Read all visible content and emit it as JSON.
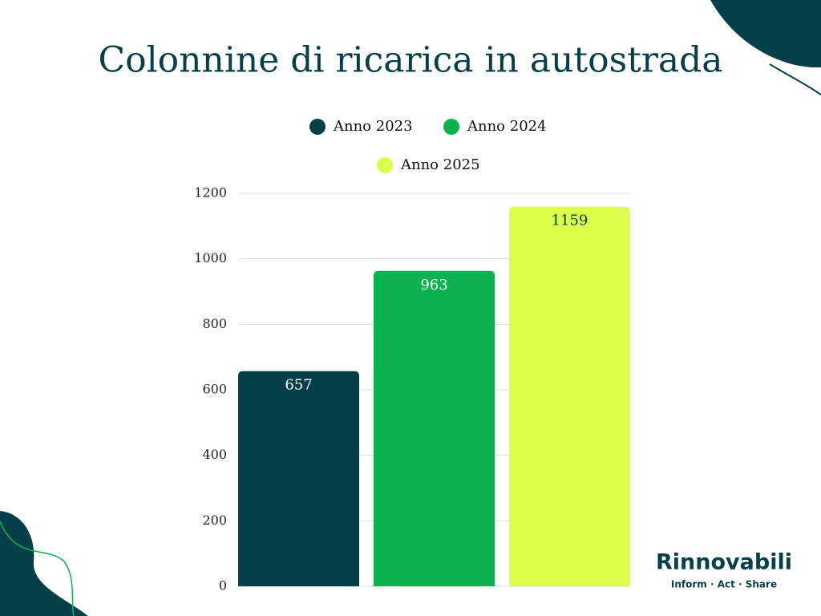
{
  "chart_data": {
    "type": "bar",
    "title": "Colonnine di ricarica in autostrada",
    "categories": [
      null
    ],
    "series": [
      {
        "name": "Anno 2023",
        "color": "#053f48",
        "values": [
          657
        ]
      },
      {
        "name": "Anno 2024",
        "color": "#0bb24f",
        "values": [
          963
        ]
      },
      {
        "name": "Anno 2025",
        "color": "#dbff4a",
        "values": [
          1159
        ]
      }
    ],
    "ylim": [
      0,
      1200
    ],
    "yticks": [
      0,
      200,
      400,
      600,
      800,
      1000,
      1200
    ],
    "grid": true
  },
  "brand": {
    "name": "Rinnovabili",
    "tagline": "Inform · Act · Share"
  }
}
